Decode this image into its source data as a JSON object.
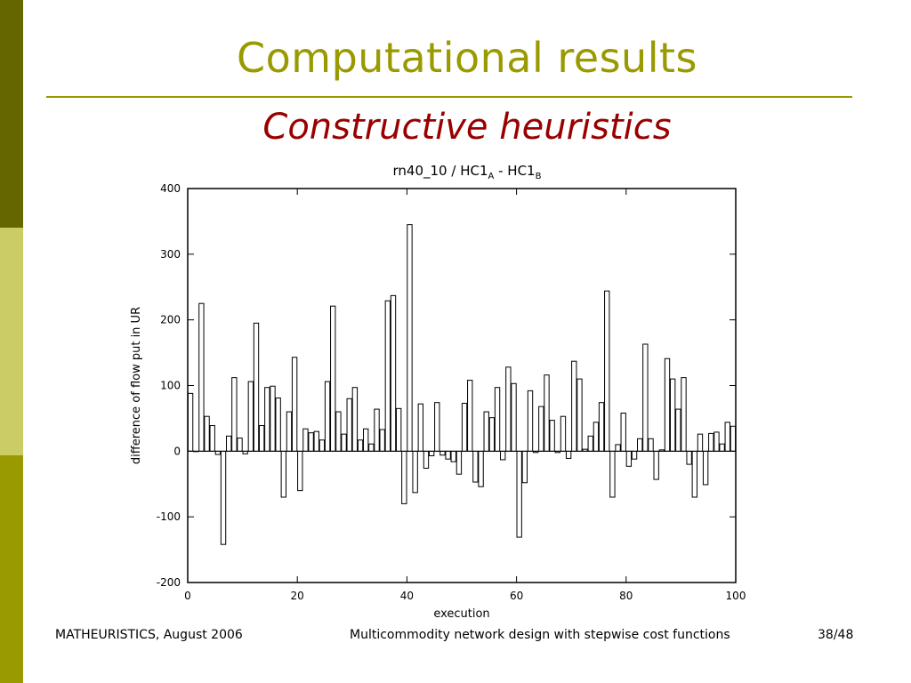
{
  "slide": {
    "title": "Computational results",
    "subtitle": "Constructive heuristics",
    "colors": {
      "title": "#999900",
      "subtitle": "#990000",
      "sidebar": [
        "#666600",
        "#cccc66",
        "#999900"
      ]
    }
  },
  "chart_title": {
    "main": "rn40_10 / HC1",
    "sub_a": "A",
    "separator": " - HC1",
    "sub_b": "B"
  },
  "chart_data": {
    "type": "bar",
    "xlabel": "execution",
    "ylabel": "difference of flow put in UR",
    "xlim": [
      0,
      100
    ],
    "ylim": [
      -200,
      400
    ],
    "x_ticks": [
      0,
      20,
      40,
      60,
      80,
      100
    ],
    "y_ticks": [
      -200,
      -100,
      0,
      100,
      200,
      300,
      400
    ],
    "x_tick_labels": [
      "0",
      "20",
      "40",
      "60",
      "80",
      "100"
    ],
    "y_tick_labels": [
      "-200",
      "-100",
      "0",
      "100",
      "200",
      "300",
      "400"
    ],
    "grid": false,
    "x": [
      0,
      1,
      2,
      3,
      4,
      5,
      6,
      7,
      8,
      9,
      10,
      11,
      12,
      13,
      14,
      15,
      16,
      17,
      18,
      19,
      20,
      21,
      22,
      23,
      24,
      25,
      26,
      27,
      28,
      29,
      30,
      31,
      32,
      33,
      34,
      35,
      36,
      37,
      38,
      39,
      40,
      41,
      42,
      43,
      44,
      45,
      46,
      47,
      48,
      49,
      50,
      51,
      52,
      53,
      54,
      55,
      56,
      57,
      58,
      59,
      60,
      61,
      62,
      63,
      64,
      65,
      66,
      67,
      68,
      69,
      70,
      71,
      72,
      73,
      74,
      75,
      76,
      77,
      78,
      79,
      80,
      81,
      82,
      83,
      84,
      85,
      86,
      87,
      88,
      89,
      90,
      91,
      92,
      93,
      94,
      95,
      96,
      97,
      98,
      99
    ],
    "values": [
      88,
      0,
      225,
      53,
      39,
      -5,
      -142,
      23,
      112,
      20,
      -4,
      106,
      195,
      39,
      97,
      99,
      81,
      -70,
      60,
      143,
      -60,
      34,
      28,
      30,
      17,
      106,
      221,
      60,
      26,
      80,
      97,
      17,
      34,
      11,
      64,
      33,
      229,
      237,
      65,
      -80,
      345,
      -63,
      72,
      -26,
      -7,
      74,
      -6,
      -12,
      -16,
      -35,
      73,
      108,
      -47,
      -54,
      60,
      51,
      97,
      -13,
      128,
      103,
      -131,
      -48,
      92,
      -2,
      68,
      116,
      47,
      -2,
      53,
      -11,
      137,
      110,
      3,
      23,
      44,
      74,
      244,
      -70,
      10,
      58,
      -23,
      -12,
      19,
      163,
      19,
      -43,
      2,
      141,
      110,
      64,
      112,
      -20,
      -70,
      26,
      -51,
      27,
      29,
      11,
      44,
      38
    ],
    "bar_style": {
      "fill": "#ffffff",
      "stroke": "#000000"
    }
  },
  "footer": {
    "left": "MATHEURISTICS, August 2006",
    "center": "Multicommodity network design with stepwise cost functions",
    "right": "38/48"
  }
}
